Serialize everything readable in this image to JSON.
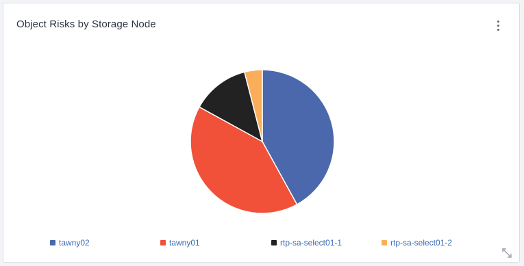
{
  "widget": {
    "title": "Object Risks by Storage Node",
    "menu_icon": "kebab-menu-icon",
    "expand_icon": "expand-diagonal-icon"
  },
  "chart_data": {
    "type": "pie",
    "title": "",
    "legend_position": "bottom",
    "series": [
      {
        "name": "tawny02",
        "value": 42,
        "color": "#4a68ab"
      },
      {
        "name": "tawny01",
        "value": 41,
        "color": "#f15039"
      },
      {
        "name": "rtp-sa-select01-1",
        "value": 13,
        "color": "#222222"
      },
      {
        "name": "rtp-sa-select01-2",
        "value": 4,
        "color": "#fbae5a"
      }
    ]
  }
}
